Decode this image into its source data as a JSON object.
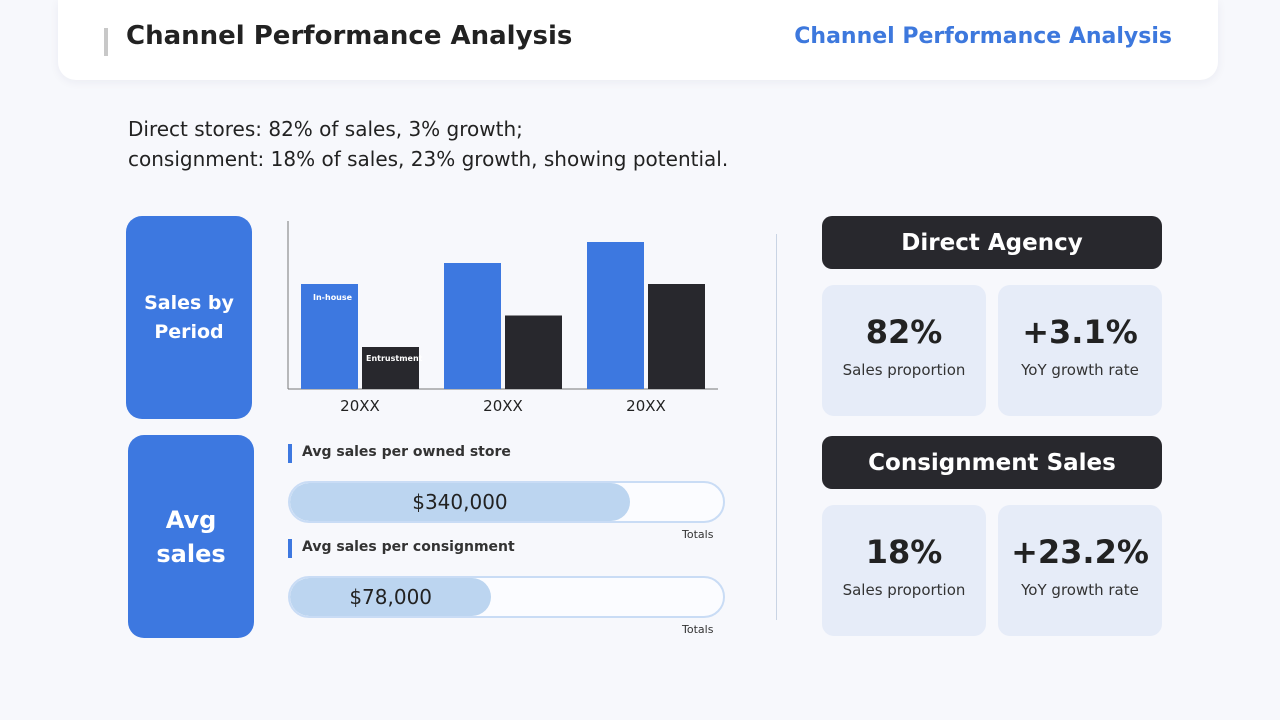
{
  "header": {
    "title": "Channel Performance Analysis",
    "right_title": "Channel Performance Analysis"
  },
  "summary": {
    "line1": "Direct stores: 82% of sales, 3% growth;",
    "line2": "consignment: 18% of sales, 23% growth, showing potential."
  },
  "labels": {
    "sales_by_period": "Sales by Period",
    "avg_sales": "Avg sales"
  },
  "chart_data": {
    "type": "bar",
    "title": "",
    "xlabel": "",
    "ylabel": "",
    "categories": [
      "20XX",
      "20XX",
      "20XX"
    ],
    "series": [
      {
        "name": "In-house",
        "values": [
          50,
          60,
          70
        ],
        "color": "#3d78e0"
      },
      {
        "name": "Entrustment",
        "values": [
          20,
          35,
          50
        ],
        "color": "#28282d"
      }
    ],
    "ylim": [
      0,
      80
    ],
    "legend": "inside-bars",
    "grid": false
  },
  "metrics": [
    {
      "title": "Avg sales per owned store",
      "value": "$340,000",
      "fraction": 0.785,
      "totals_label": "Totals"
    },
    {
      "title": "Avg sales per consignment",
      "value": "$78,000",
      "fraction": 0.465,
      "totals_label": "Totals"
    }
  ],
  "direct": {
    "header": "Direct Agency",
    "stats": [
      {
        "value": "82%",
        "caption": "Sales proportion"
      },
      {
        "value": "+3.1%",
        "caption": "YoY growth rate"
      }
    ]
  },
  "consignment": {
    "header": "Consignment Sales",
    "stats": [
      {
        "value": "18%",
        "caption": "Sales proportion"
      },
      {
        "value": "+23.2%",
        "caption": "YoY growth rate"
      }
    ]
  },
  "colors": {
    "accent": "#3d78e0",
    "dark": "#28282d",
    "stat_bg": "#e6ecf8",
    "bar_fill": "#bcd5f0"
  }
}
